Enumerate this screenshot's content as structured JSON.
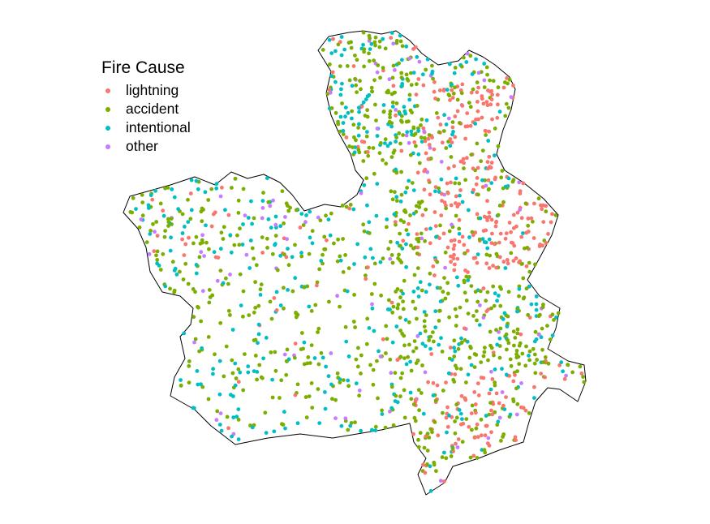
{
  "legend": {
    "title": "Fire Cause",
    "items": [
      {
        "key": "lightning",
        "label": "lightning",
        "color": "#F8766D"
      },
      {
        "key": "accident",
        "label": "accident",
        "color": "#7CAE00"
      },
      {
        "key": "intentional",
        "label": "intentional",
        "color": "#00BFC4"
      },
      {
        "key": "other",
        "label": "other",
        "color": "#C77CFF"
      }
    ]
  },
  "chart_data": {
    "type": "scatter",
    "title": "",
    "xlabel": "",
    "ylabel": "",
    "grid": false,
    "legend_placement": "top-left",
    "background": "#FFFFFF",
    "outline_color": "#000000",
    "series": [
      {
        "name": "lightning",
        "color": "#F8766D"
      },
      {
        "name": "accident",
        "color": "#7CAE00"
      },
      {
        "name": "intentional",
        "color": "#00BFC4"
      },
      {
        "name": "other",
        "color": "#C77CFF"
      }
    ]
  }
}
